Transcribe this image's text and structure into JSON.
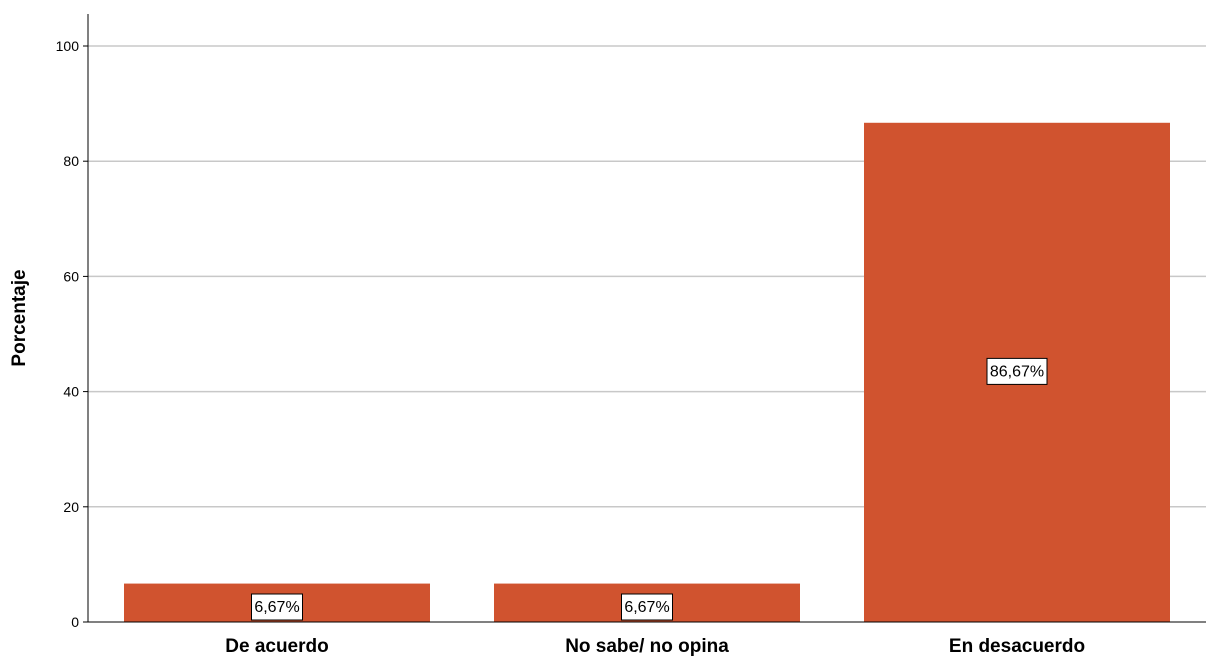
{
  "chart_data": {
    "type": "bar",
    "categories": [
      "De acuerdo",
      "No sabe/ no opina",
      "En desacuerdo"
    ],
    "values": [
      6.67,
      6.67,
      86.67
    ],
    "data_labels": [
      "6,67%",
      "6,67%",
      "86,67%"
    ],
    "title": "",
    "xlabel": "",
    "ylabel": "Porcentaje",
    "ylim": [
      0,
      100
    ],
    "yticks": [
      0,
      20,
      40,
      60,
      80,
      100
    ],
    "ytick_labels": [
      "0",
      "20",
      "40",
      "60",
      "80",
      "100"
    ],
    "grid": true,
    "bar_color": "#d0532f",
    "grid_color": "#c8c8c8"
  }
}
